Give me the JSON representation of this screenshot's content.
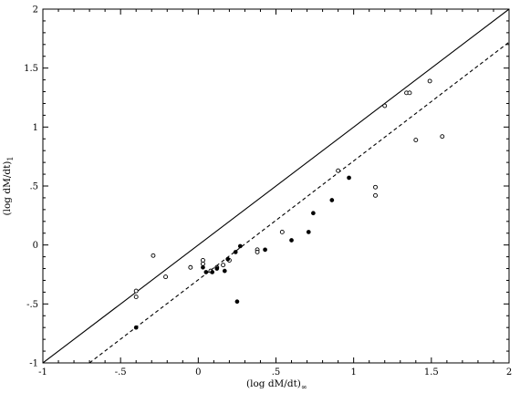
{
  "chart_data": {
    "type": "scatter",
    "title": "",
    "xlabel": "(log dM/dt)",
    "xlabel_sub": "∞",
    "ylabel": "(log dM/dt)",
    "ylabel_sub": "1",
    "xlim": [
      -1,
      2
    ],
    "ylim": [
      -1,
      2
    ],
    "x_ticks": [
      -1,
      -0.5,
      0,
      0.5,
      1,
      1.5,
      2
    ],
    "x_tick_labels": [
      "-1",
      "-.5",
      "0",
      ".5",
      "1",
      "1.5",
      "2"
    ],
    "y_ticks": [
      -1,
      -0.5,
      0,
      0.5,
      1,
      1.5,
      2
    ],
    "y_tick_labels": [
      "-1",
      "-.5",
      "0",
      ".5",
      "1",
      "1.5",
      "2"
    ],
    "grid": false,
    "legend": "none",
    "lines": [
      {
        "style": "solid",
        "x": [
          -1,
          2
        ],
        "y": [
          -1,
          2
        ]
      },
      {
        "style": "dashed",
        "x": [
          -0.7,
          2
        ],
        "y": [
          -1,
          1.72
        ]
      }
    ],
    "series": [
      {
        "marker": "open-circle",
        "x": [
          -0.4,
          -0.4,
          -0.29,
          -0.21,
          -0.05,
          0.03,
          0.03,
          0.08,
          0.12,
          0.16,
          0.2,
          0.38,
          0.38,
          0.54,
          0.9,
          1.14,
          1.14,
          1.2,
          1.34,
          1.36,
          1.4,
          1.49,
          1.57
        ],
        "y": [
          -0.39,
          -0.44,
          -0.09,
          -0.27,
          -0.19,
          -0.13,
          -0.16,
          -0.22,
          -0.19,
          -0.17,
          -0.13,
          -0.04,
          -0.06,
          0.11,
          0.63,
          0.49,
          0.42,
          1.18,
          1.29,
          1.29,
          0.89,
          1.39,
          0.92
        ]
      },
      {
        "marker": "filled-circle",
        "x": [
          -0.4,
          0.03,
          0.05,
          0.09,
          0.12,
          0.17,
          0.19,
          0.24,
          0.25,
          0.27,
          0.43,
          0.6,
          0.71,
          0.74,
          0.86,
          0.97
        ],
        "y": [
          -0.7,
          -0.19,
          -0.23,
          -0.23,
          -0.2,
          -0.22,
          -0.12,
          -0.06,
          -0.48,
          -0.01,
          -0.04,
          0.04,
          0.11,
          0.27,
          0.38,
          0.57
        ]
      }
    ]
  }
}
